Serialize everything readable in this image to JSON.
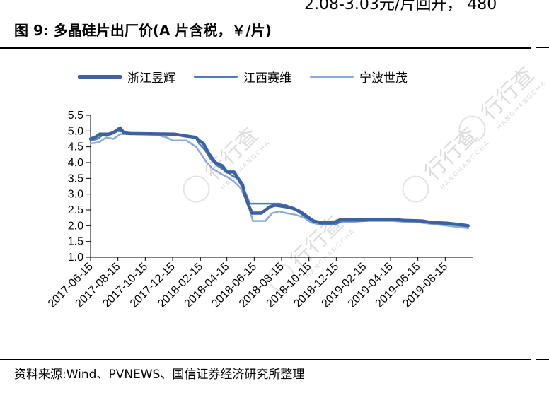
{
  "header": {
    "cut_text": "2.08-3.03元/片回升，  480",
    "title": "图 9:  多晶硅片出厂价(A 片含税，￥/片)"
  },
  "footer": {
    "source": "资料来源:Wind、PVNEWS、国信证券经济研究所整理"
  },
  "watermark": {
    "cn": "行行查",
    "en": "HANGHANGCHA"
  },
  "colors": {
    "series_1": "#3d61a1",
    "series_2": "#4b7bc2",
    "series_3": "#8aabdb"
  },
  "chart_data": {
    "type": "line",
    "title": "多晶硅片出厂价(A 片含税，￥/片)",
    "xlabel": "",
    "ylabel": "",
    "ylim": [
      1.0,
      5.5
    ],
    "yticks": [
      "1.0",
      "1.5",
      "2.0",
      "2.5",
      "3.0",
      "3.5",
      "4.0",
      "4.5",
      "5.0",
      "5.5"
    ],
    "xlim": [
      "2017-06-15",
      "2019-10-15"
    ],
    "xticks": [
      "2017-06-15",
      "2017-08-15",
      "2017-10-15",
      "2017-12-15",
      "2018-02-15",
      "2018-04-15",
      "2018-06-15",
      "2018-08-15",
      "2018-10-15",
      "2018-12-15",
      "2019-02-15",
      "2019-04-15",
      "2019-06-15",
      "2019-08-15"
    ],
    "legend_position": "top",
    "grid": false,
    "series": [
      {
        "name": "浙江昱辉",
        "color": "#3d61a1",
        "points": [
          [
            "2017-06-15",
            4.75
          ],
          [
            "2017-06-25",
            4.8
          ],
          [
            "2017-07-05",
            4.9
          ],
          [
            "2017-07-25",
            4.9
          ],
          [
            "2017-08-05",
            4.95
          ],
          [
            "2017-08-15",
            5.05
          ],
          [
            "2017-08-20",
            5.1
          ],
          [
            "2017-08-28",
            4.95
          ],
          [
            "2017-09-10",
            4.92
          ],
          [
            "2017-12-20",
            4.9
          ],
          [
            "2018-01-10",
            4.85
          ],
          [
            "2018-02-05",
            4.8
          ],
          [
            "2018-02-12",
            4.7
          ],
          [
            "2018-02-22",
            4.6
          ],
          [
            "2018-03-05",
            4.3
          ],
          [
            "2018-03-20",
            4.0
          ],
          [
            "2018-04-05",
            3.9
          ],
          [
            "2018-04-15",
            3.7
          ],
          [
            "2018-05-01",
            3.7
          ],
          [
            "2018-05-10",
            3.5
          ],
          [
            "2018-05-20",
            3.3
          ],
          [
            "2018-05-25",
            3.0
          ],
          [
            "2018-06-01",
            2.7
          ],
          [
            "2018-06-10",
            2.4
          ],
          [
            "2018-07-01",
            2.4
          ],
          [
            "2018-07-20",
            2.6
          ],
          [
            "2018-08-01",
            2.65
          ],
          [
            "2018-08-25",
            2.6
          ],
          [
            "2018-09-10",
            2.55
          ],
          [
            "2018-09-25",
            2.45
          ],
          [
            "2018-10-10",
            2.3
          ],
          [
            "2018-10-25",
            2.15
          ],
          [
            "2018-11-10",
            2.1
          ],
          [
            "2018-12-10",
            2.1
          ],
          [
            "2018-12-25",
            2.2
          ],
          [
            "2019-01-20",
            2.2
          ],
          [
            "2019-02-10",
            2.2
          ],
          [
            "2019-03-15",
            2.2
          ],
          [
            "2019-04-15",
            2.2
          ],
          [
            "2019-05-15",
            2.17
          ],
          [
            "2019-06-25",
            2.15
          ],
          [
            "2019-07-15",
            2.1
          ],
          [
            "2019-08-20",
            2.08
          ],
          [
            "2019-09-20",
            2.03
          ],
          [
            "2019-10-05",
            2.0
          ]
        ]
      },
      {
        "name": "江西赛维",
        "color": "#4b7bc2",
        "points": [
          [
            "2017-06-15",
            4.7
          ],
          [
            "2017-07-01",
            4.75
          ],
          [
            "2017-07-10",
            4.85
          ],
          [
            "2017-08-01",
            4.9
          ],
          [
            "2017-08-15",
            5.0
          ],
          [
            "2017-09-05",
            4.95
          ],
          [
            "2017-10-01",
            4.92
          ],
          [
            "2017-12-15",
            4.88
          ],
          [
            "2018-01-10",
            4.85
          ],
          [
            "2018-02-05",
            4.78
          ],
          [
            "2018-02-12",
            4.6
          ],
          [
            "2018-02-25",
            4.4
          ],
          [
            "2018-03-10",
            4.1
          ],
          [
            "2018-03-25",
            3.9
          ],
          [
            "2018-04-10",
            3.75
          ],
          [
            "2018-04-25",
            3.6
          ],
          [
            "2018-05-08",
            3.5
          ],
          [
            "2018-05-18",
            3.25
          ],
          [
            "2018-05-28",
            3.0
          ],
          [
            "2018-06-05",
            2.7
          ],
          [
            "2018-06-20",
            2.7
          ],
          [
            "2018-07-15",
            2.7
          ],
          [
            "2018-08-10",
            2.7
          ],
          [
            "2018-08-25",
            2.65
          ],
          [
            "2018-09-10",
            2.55
          ],
          [
            "2018-09-25",
            2.4
          ],
          [
            "2018-10-10",
            2.25
          ],
          [
            "2018-10-25",
            2.15
          ],
          [
            "2018-11-10",
            2.05
          ],
          [
            "2018-12-15",
            2.05
          ],
          [
            "2018-12-28",
            2.15
          ],
          [
            "2019-01-20",
            2.15
          ],
          [
            "2019-02-15",
            2.15
          ],
          [
            "2019-03-20",
            2.2
          ],
          [
            "2019-04-20",
            2.2
          ],
          [
            "2019-05-20",
            2.15
          ],
          [
            "2019-06-20",
            2.15
          ],
          [
            "2019-07-15",
            2.1
          ],
          [
            "2019-08-20",
            2.05
          ],
          [
            "2019-09-20",
            2.0
          ],
          [
            "2019-10-05",
            1.98
          ]
        ]
      },
      {
        "name": "宁波世茂",
        "color": "#8aabdb",
        "points": [
          [
            "2017-06-15",
            4.6
          ],
          [
            "2017-07-05",
            4.65
          ],
          [
            "2017-07-20",
            4.8
          ],
          [
            "2017-08-05",
            4.75
          ],
          [
            "2017-08-20",
            4.9
          ],
          [
            "2017-09-10",
            4.9
          ],
          [
            "2017-11-10",
            4.88
          ],
          [
            "2017-12-01",
            4.8
          ],
          [
            "2017-12-15",
            4.7
          ],
          [
            "2018-01-15",
            4.7
          ],
          [
            "2018-02-05",
            4.5
          ],
          [
            "2018-02-15",
            4.3
          ],
          [
            "2018-03-01",
            4.0
          ],
          [
            "2018-03-15",
            3.8
          ],
          [
            "2018-04-01",
            3.65
          ],
          [
            "2018-04-15",
            3.55
          ],
          [
            "2018-05-01",
            3.4
          ],
          [
            "2018-05-15",
            3.2
          ],
          [
            "2018-05-25",
            2.9
          ],
          [
            "2018-06-05",
            2.5
          ],
          [
            "2018-06-12",
            2.15
          ],
          [
            "2018-07-10",
            2.15
          ],
          [
            "2018-07-25",
            2.4
          ],
          [
            "2018-08-10",
            2.45
          ],
          [
            "2018-08-25",
            2.4
          ],
          [
            "2018-09-15",
            2.35
          ],
          [
            "2018-10-05",
            2.25
          ],
          [
            "2018-10-20",
            2.1
          ],
          [
            "2018-11-05",
            2.05
          ],
          [
            "2018-12-10",
            2.05
          ],
          [
            "2018-12-25",
            2.12
          ],
          [
            "2019-01-20",
            2.12
          ],
          [
            "2019-02-20",
            2.15
          ],
          [
            "2019-03-20",
            2.15
          ],
          [
            "2019-04-20",
            2.15
          ],
          [
            "2019-05-20",
            2.12
          ],
          [
            "2019-06-20",
            2.1
          ],
          [
            "2019-07-20",
            2.05
          ],
          [
            "2019-08-20",
            2.0
          ],
          [
            "2019-09-20",
            1.95
          ],
          [
            "2019-10-05",
            1.92
          ]
        ]
      }
    ]
  }
}
